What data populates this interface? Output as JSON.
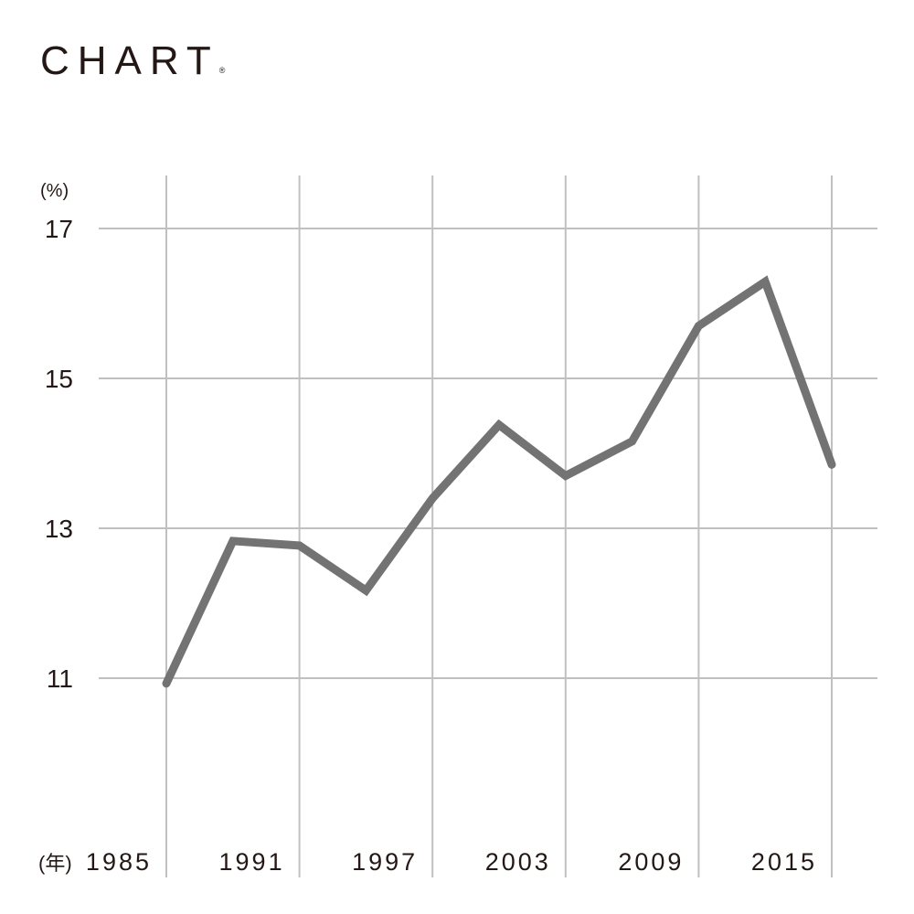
{
  "logo": {
    "text": "CHART",
    "mark": "®"
  },
  "chart_data": {
    "type": "line",
    "title": "",
    "ylabel": "(%)",
    "xlabel": "(年)",
    "ylim": [
      11,
      17
    ],
    "yticks": [
      11,
      13,
      15,
      17
    ],
    "xlim": [
      1985,
      2015
    ],
    "xticks": [
      1985,
      1991,
      1997,
      2003,
      2009,
      2015
    ],
    "grid": true,
    "line_color": "#737373",
    "grid_color": "#c0c0c0",
    "x": [
      1985,
      1988,
      1991,
      1994,
      1997,
      2000,
      2003,
      2006,
      2009,
      2012,
      2015
    ],
    "values": [
      10.93,
      12.83,
      12.77,
      12.17,
      13.4,
      14.38,
      13.7,
      14.16,
      15.7,
      16.29,
      13.85
    ]
  }
}
